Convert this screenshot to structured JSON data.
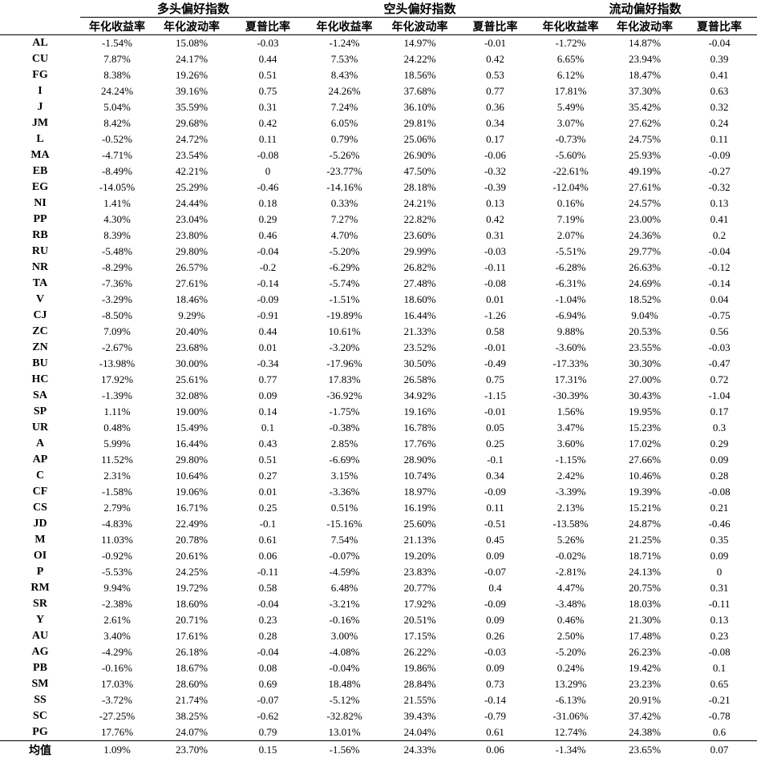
{
  "groups": [
    "多头偏好指数",
    "空头偏好指数",
    "流动偏好指数"
  ],
  "metrics": [
    "年化收益率",
    "年化波动率",
    "夏普比率"
  ],
  "rows": [
    [
      "AL",
      "-1.54%",
      "15.08%",
      "-0.03",
      "-1.24%",
      "14.97%",
      "-0.01",
      "-1.72%",
      "14.87%",
      "-0.04"
    ],
    [
      "CU",
      "7.87%",
      "24.17%",
      "0.44",
      "7.53%",
      "24.22%",
      "0.42",
      "6.65%",
      "23.94%",
      "0.39"
    ],
    [
      "FG",
      "8.38%",
      "19.26%",
      "0.51",
      "8.43%",
      "18.56%",
      "0.53",
      "6.12%",
      "18.47%",
      "0.41"
    ],
    [
      "I",
      "24.24%",
      "39.16%",
      "0.75",
      "24.26%",
      "37.68%",
      "0.77",
      "17.81%",
      "37.30%",
      "0.63"
    ],
    [
      "J",
      "5.04%",
      "35.59%",
      "0.31",
      "7.24%",
      "36.10%",
      "0.36",
      "5.49%",
      "35.42%",
      "0.32"
    ],
    [
      "JM",
      "8.42%",
      "29.68%",
      "0.42",
      "6.05%",
      "29.81%",
      "0.34",
      "3.07%",
      "27.62%",
      "0.24"
    ],
    [
      "L",
      "-0.52%",
      "24.72%",
      "0.11",
      "0.79%",
      "25.06%",
      "0.17",
      "-0.73%",
      "24.75%",
      "0.11"
    ],
    [
      "MA",
      "-4.71%",
      "23.54%",
      "-0.08",
      "-5.26%",
      "26.90%",
      "-0.06",
      "-5.60%",
      "25.93%",
      "-0.09"
    ],
    [
      "EB",
      "-8.49%",
      "42.21%",
      "0",
      "-23.77%",
      "47.50%",
      "-0.32",
      "-22.61%",
      "49.19%",
      "-0.27"
    ],
    [
      "EG",
      "-14.05%",
      "25.29%",
      "-0.46",
      "-14.16%",
      "28.18%",
      "-0.39",
      "-12.04%",
      "27.61%",
      "-0.32"
    ],
    [
      "NI",
      "1.41%",
      "24.44%",
      "0.18",
      "0.33%",
      "24.21%",
      "0.13",
      "0.16%",
      "24.57%",
      "0.13"
    ],
    [
      "PP",
      "4.30%",
      "23.04%",
      "0.29",
      "7.27%",
      "22.82%",
      "0.42",
      "7.19%",
      "23.00%",
      "0.41"
    ],
    [
      "RB",
      "8.39%",
      "23.80%",
      "0.46",
      "4.70%",
      "23.60%",
      "0.31",
      "2.07%",
      "24.36%",
      "0.2"
    ],
    [
      "RU",
      "-5.48%",
      "29.80%",
      "-0.04",
      "-5.20%",
      "29.99%",
      "-0.03",
      "-5.51%",
      "29.77%",
      "-0.04"
    ],
    [
      "NR",
      "-8.29%",
      "26.57%",
      "-0.2",
      "-6.29%",
      "26.82%",
      "-0.11",
      "-6.28%",
      "26.63%",
      "-0.12"
    ],
    [
      "TA",
      "-7.36%",
      "27.61%",
      "-0.14",
      "-5.74%",
      "27.48%",
      "-0.08",
      "-6.31%",
      "24.69%",
      "-0.14"
    ],
    [
      "V",
      "-3.29%",
      "18.46%",
      "-0.09",
      "-1.51%",
      "18.60%",
      "0.01",
      "-1.04%",
      "18.52%",
      "0.04"
    ],
    [
      "CJ",
      "-8.50%",
      "9.29%",
      "-0.91",
      "-19.89%",
      "16.44%",
      "-1.26",
      "-6.94%",
      "9.04%",
      "-0.75"
    ],
    [
      "ZC",
      "7.09%",
      "20.40%",
      "0.44",
      "10.61%",
      "21.33%",
      "0.58",
      "9.88%",
      "20.53%",
      "0.56"
    ],
    [
      "ZN",
      "-2.67%",
      "23.68%",
      "0.01",
      "-3.20%",
      "23.52%",
      "-0.01",
      "-3.60%",
      "23.55%",
      "-0.03"
    ],
    [
      "BU",
      "-13.98%",
      "30.00%",
      "-0.34",
      "-17.96%",
      "30.50%",
      "-0.49",
      "-17.33%",
      "30.30%",
      "-0.47"
    ],
    [
      "HC",
      "17.92%",
      "25.61%",
      "0.77",
      "17.83%",
      "26.58%",
      "0.75",
      "17.31%",
      "27.00%",
      "0.72"
    ],
    [
      "SA",
      "-1.39%",
      "32.08%",
      "0.09",
      "-36.92%",
      "34.92%",
      "-1.15",
      "-30.39%",
      "30.43%",
      "-1.04"
    ],
    [
      "SP",
      "1.11%",
      "19.00%",
      "0.14",
      "-1.75%",
      "19.16%",
      "-0.01",
      "1.56%",
      "19.95%",
      "0.17"
    ],
    [
      "UR",
      "0.48%",
      "15.49%",
      "0.1",
      "-0.38%",
      "16.78%",
      "0.05",
      "3.47%",
      "15.23%",
      "0.3"
    ],
    [
      "A",
      "5.99%",
      "16.44%",
      "0.43",
      "2.85%",
      "17.76%",
      "0.25",
      "3.60%",
      "17.02%",
      "0.29"
    ],
    [
      "AP",
      "11.52%",
      "29.80%",
      "0.51",
      "-6.69%",
      "28.90%",
      "-0.1",
      "-1.15%",
      "27.66%",
      "0.09"
    ],
    [
      "C",
      "2.31%",
      "10.64%",
      "0.27",
      "3.15%",
      "10.74%",
      "0.34",
      "2.42%",
      "10.46%",
      "0.28"
    ],
    [
      "CF",
      "-1.58%",
      "19.06%",
      "0.01",
      "-3.36%",
      "18.97%",
      "-0.09",
      "-3.39%",
      "19.39%",
      "-0.08"
    ],
    [
      "CS",
      "2.79%",
      "16.71%",
      "0.25",
      "0.51%",
      "16.19%",
      "0.11",
      "2.13%",
      "15.21%",
      "0.21"
    ],
    [
      "JD",
      "-4.83%",
      "22.49%",
      "-0.1",
      "-15.16%",
      "25.60%",
      "-0.51",
      "-13.58%",
      "24.87%",
      "-0.46"
    ],
    [
      "M",
      "11.03%",
      "20.78%",
      "0.61",
      "7.54%",
      "21.13%",
      "0.45",
      "5.26%",
      "21.25%",
      "0.35"
    ],
    [
      "OI",
      "-0.92%",
      "20.61%",
      "0.06",
      "-0.07%",
      "19.20%",
      "0.09",
      "-0.02%",
      "18.71%",
      "0.09"
    ],
    [
      "P",
      "-5.53%",
      "24.25%",
      "-0.11",
      "-4.59%",
      "23.83%",
      "-0.07",
      "-2.81%",
      "24.13%",
      "0"
    ],
    [
      "RM",
      "9.94%",
      "19.72%",
      "0.58",
      "6.48%",
      "20.77%",
      "0.4",
      "4.47%",
      "20.75%",
      "0.31"
    ],
    [
      "SR",
      "-2.38%",
      "18.60%",
      "-0.04",
      "-3.21%",
      "17.92%",
      "-0.09",
      "-3.48%",
      "18.03%",
      "-0.11"
    ],
    [
      "Y",
      "2.61%",
      "20.71%",
      "0.23",
      "-0.16%",
      "20.51%",
      "0.09",
      "0.46%",
      "21.30%",
      "0.13"
    ],
    [
      "AU",
      "3.40%",
      "17.61%",
      "0.28",
      "3.00%",
      "17.15%",
      "0.26",
      "2.50%",
      "17.48%",
      "0.23"
    ],
    [
      "AG",
      "-4.29%",
      "26.18%",
      "-0.04",
      "-4.08%",
      "26.22%",
      "-0.03",
      "-5.20%",
      "26.23%",
      "-0.08"
    ],
    [
      "PB",
      "-0.16%",
      "18.67%",
      "0.08",
      "-0.04%",
      "19.86%",
      "0.09",
      "0.24%",
      "19.42%",
      "0.1"
    ],
    [
      "SM",
      "17.03%",
      "28.60%",
      "0.69",
      "18.48%",
      "28.84%",
      "0.73",
      "13.29%",
      "23.23%",
      "0.65"
    ],
    [
      "SS",
      "-3.72%",
      "21.74%",
      "-0.07",
      "-5.12%",
      "21.55%",
      "-0.14",
      "-6.13%",
      "20.91%",
      "-0.21"
    ],
    [
      "SC",
      "-27.25%",
      "38.25%",
      "-0.62",
      "-32.82%",
      "39.43%",
      "-0.79",
      "-31.06%",
      "37.42%",
      "-0.78"
    ],
    [
      "PG",
      "17.76%",
      "24.07%",
      "0.79",
      "13.01%",
      "24.04%",
      "0.61",
      "12.74%",
      "24.38%",
      "0.6"
    ]
  ],
  "average": {
    "label": "均值",
    "values": [
      "1.09%",
      "23.70%",
      "0.15",
      "-1.56%",
      "24.33%",
      "0.06",
      "-1.34%",
      "23.65%",
      "0.07"
    ]
  }
}
